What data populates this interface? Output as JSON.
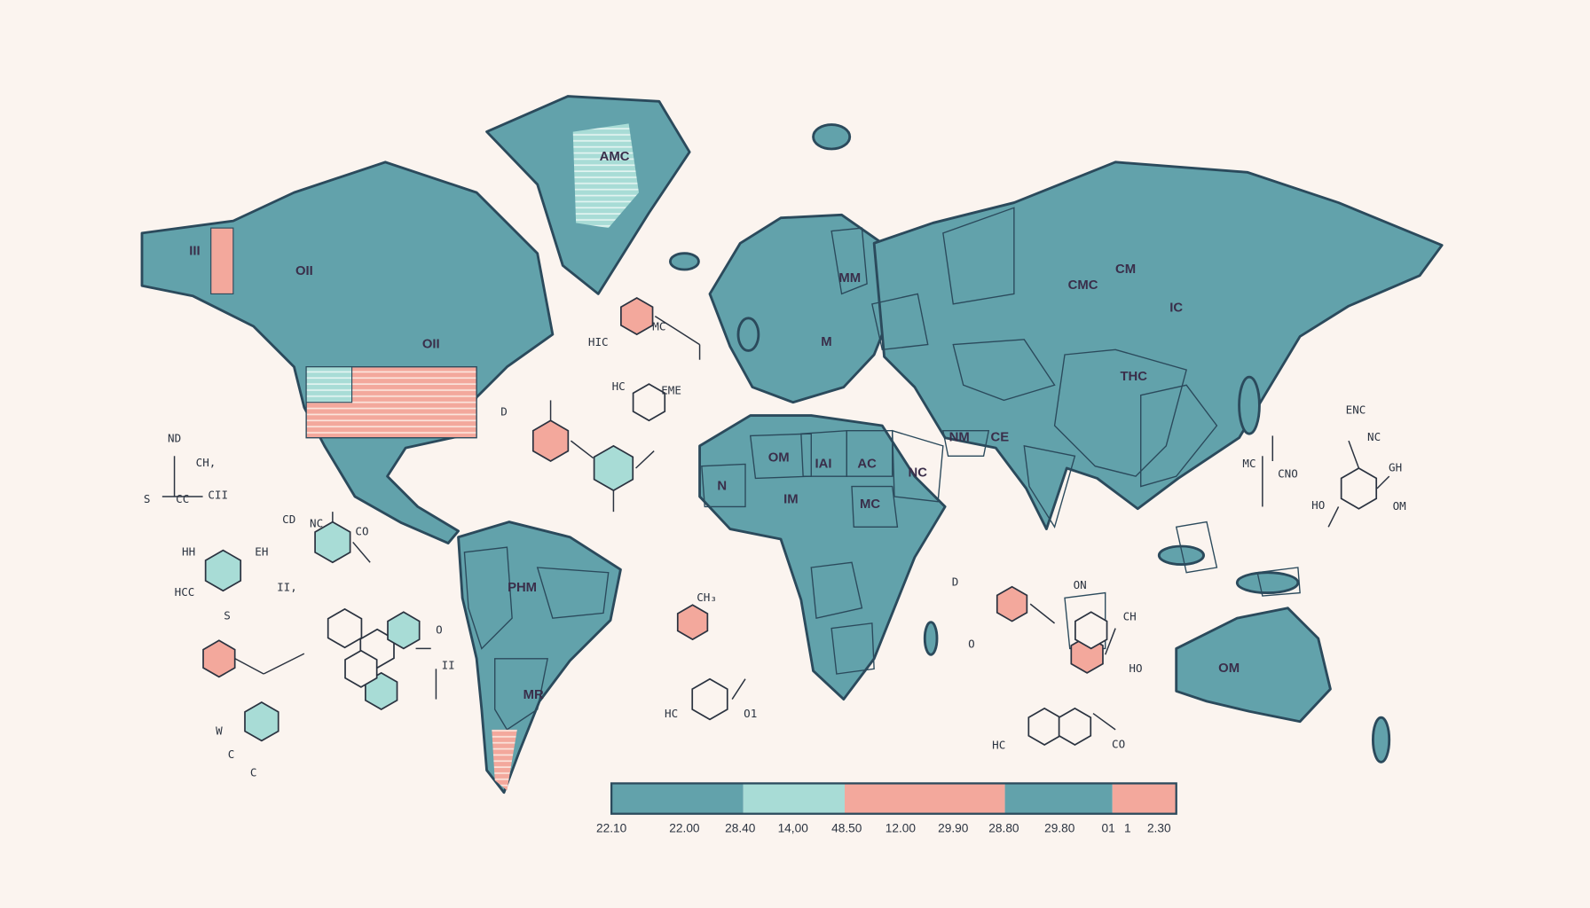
{
  "map_labels": [
    "AMC",
    "III",
    "OII",
    "OII",
    "MM",
    "M",
    "CMC",
    "CM",
    "IC",
    "THC",
    "OM",
    "IAI",
    "AC",
    "NC",
    "MC",
    "N",
    "IM",
    "NM",
    "CE",
    "PHM",
    "MR",
    "OM"
  ],
  "chemistry_labels": [
    "HIC",
    "MC",
    "HC",
    "EME",
    "D",
    "ND",
    "CH,",
    "S",
    "CC",
    "CII",
    "CD",
    "NC",
    "CO",
    "HH",
    "EH",
    "HCC",
    "II,",
    "S",
    "W",
    "C",
    "C",
    "CH₃",
    "HC",
    "O1",
    "D",
    "O",
    "ON",
    "CH",
    "HO",
    "HC",
    "CO",
    "ENC",
    "NC",
    "MC",
    "CNO",
    "GH",
    "HO",
    "OM",
    "II",
    "O"
  ],
  "legend": {
    "labels": [
      "22.10",
      "22.00",
      "28.40",
      "14,00",
      "48.50",
      "12.00",
      "29.90",
      "28.80",
      "29.80",
      "01",
      "1",
      "2.30"
    ]
  }
}
